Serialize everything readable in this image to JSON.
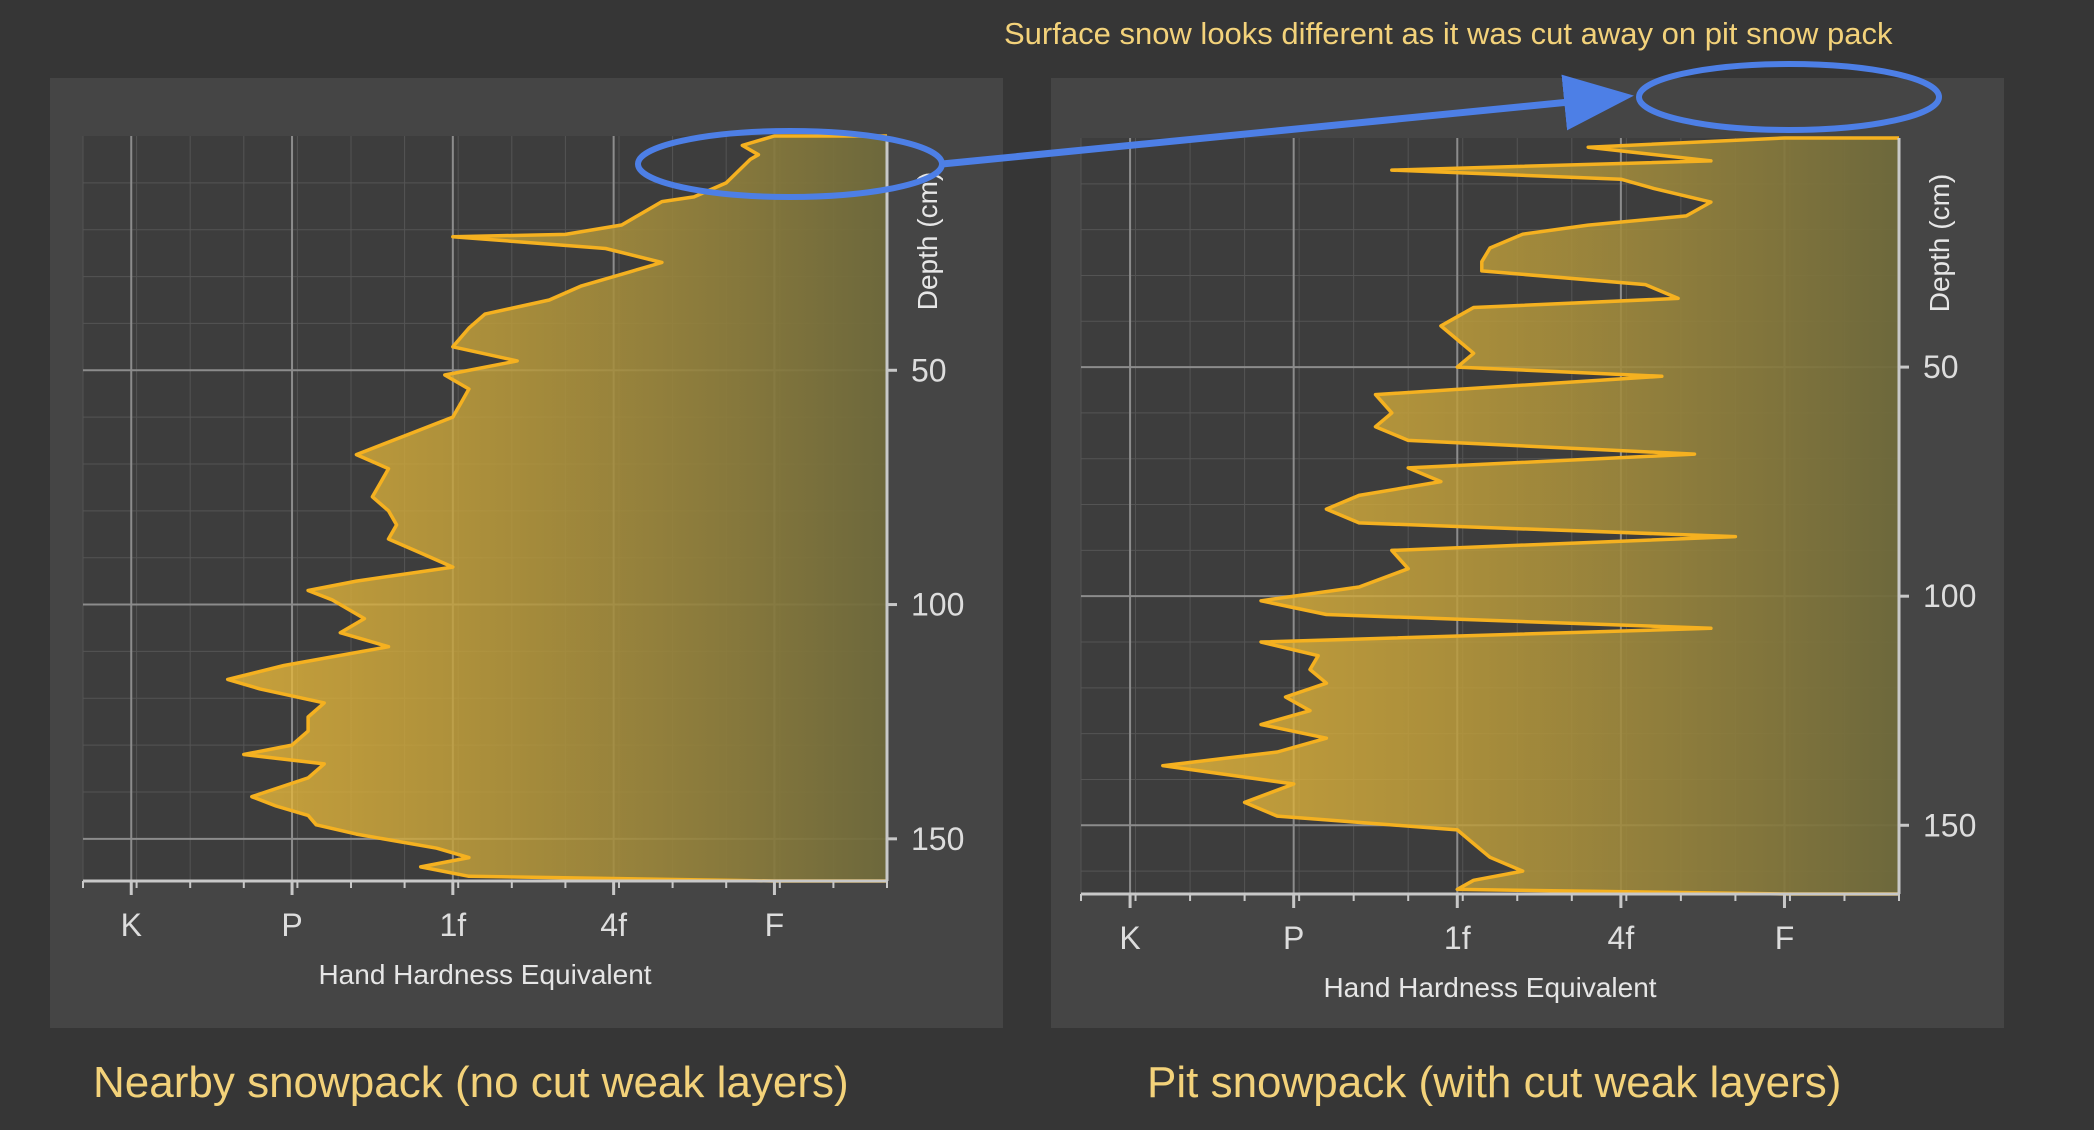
{
  "annotation": "Surface snow looks different as it was cut away on pit snow pack",
  "colors": {
    "profile": "#f5b120",
    "fill_top": "#f5c13a",
    "fill_bottom": "#6f6a3c",
    "annotation_blue": "#4d7fe6",
    "caption": "#f3d27a",
    "panel": "#454545",
    "plot_bg": "#3d3d3d",
    "axis": "#c8c8c8"
  },
  "chart_data": [
    {
      "type": "area",
      "orientation": "horizontal-profile",
      "caption": "Nearby snowpack (no cut weak layers)",
      "xlabel": "Hand Hardness Equivalent",
      "ylabel": "Depth (cm)",
      "x_ticks": [
        "K",
        "P",
        "1f",
        "4f",
        "F"
      ],
      "x_tick_values": [
        5,
        4,
        3,
        2,
        1
      ],
      "xlim": [
        5.3,
        0.3
      ],
      "y_ticks": [
        50,
        100,
        150
      ],
      "ylim": [
        0,
        159
      ],
      "grid": true,
      "profile": {
        "depth": [
          0,
          2,
          4,
          5,
          10,
          13,
          14,
          19,
          21,
          21.5,
          24,
          27,
          29,
          32,
          35,
          38,
          41,
          45,
          48,
          51,
          54,
          57,
          60,
          64,
          68,
          71,
          74,
          77,
          80,
          83,
          86,
          89,
          92,
          95,
          97,
          99,
          103,
          106,
          109,
          113,
          116,
          118,
          121,
          124,
          127,
          130,
          132,
          134,
          137,
          141,
          143,
          145,
          147,
          149,
          152,
          154,
          156,
          158,
          159
        ],
        "hardness": [
          1.0,
          1.2,
          1.1,
          1.15,
          1.3,
          1.5,
          1.7,
          1.95,
          2.3,
          3.0,
          2.05,
          1.7,
          1.9,
          2.2,
          2.4,
          2.8,
          2.9,
          3.0,
          2.6,
          3.05,
          2.9,
          2.95,
          3.0,
          3.3,
          3.6,
          3.4,
          3.45,
          3.5,
          3.4,
          3.35,
          3.4,
          3.2,
          3.0,
          3.6,
          3.9,
          3.75,
          3.55,
          3.7,
          3.4,
          4.05,
          4.4,
          4.2,
          3.8,
          3.9,
          3.9,
          4.0,
          4.3,
          3.8,
          3.9,
          4.25,
          4.1,
          3.9,
          3.85,
          3.6,
          3.1,
          2.9,
          3.2,
          2.9,
          1.0
        ]
      }
    },
    {
      "type": "area",
      "orientation": "horizontal-profile",
      "caption": "Pit snowpack (with cut weak layers)",
      "xlabel": "Hand Hardness Equivalent",
      "ylabel": "Depth (cm)",
      "x_ticks": [
        "K",
        "P",
        "1f",
        "4f",
        "F"
      ],
      "x_tick_values": [
        5,
        4,
        3,
        2,
        1
      ],
      "xlim": [
        5.3,
        0.3
      ],
      "y_ticks": [
        50,
        100,
        150
      ],
      "ylim": [
        0,
        165
      ],
      "grid": true,
      "profile": {
        "depth": [
          0,
          2,
          5,
          7,
          9,
          11,
          14,
          17,
          19,
          21,
          24,
          27,
          29,
          32,
          35,
          37,
          39,
          41,
          44,
          47,
          50,
          52,
          56,
          60,
          63,
          66,
          69,
          72,
          75,
          78,
          81,
          84,
          87,
          90,
          94,
          98,
          101,
          104,
          107,
          110,
          113,
          116,
          119,
          122,
          125,
          128,
          131,
          134,
          137,
          141,
          145,
          148,
          151,
          154,
          157,
          160,
          162,
          164,
          165
        ],
        "hardness": [
          1.0,
          2.2,
          1.45,
          3.4,
          2.0,
          1.8,
          1.45,
          1.6,
          2.2,
          2.6,
          2.8,
          2.85,
          2.85,
          1.85,
          1.65,
          2.9,
          3.0,
          3.1,
          3.0,
          2.9,
          3.0,
          1.75,
          3.5,
          3.4,
          3.5,
          3.3,
          1.55,
          3.3,
          3.1,
          3.6,
          3.8,
          3.6,
          1.3,
          3.4,
          3.3,
          3.6,
          4.2,
          3.8,
          1.45,
          4.2,
          3.85,
          3.9,
          3.8,
          4.05,
          3.9,
          4.2,
          3.8,
          4.1,
          4.8,
          4.0,
          4.3,
          4.1,
          3.0,
          2.9,
          2.8,
          2.6,
          2.9,
          3.0,
          1.0
        ]
      }
    }
  ]
}
